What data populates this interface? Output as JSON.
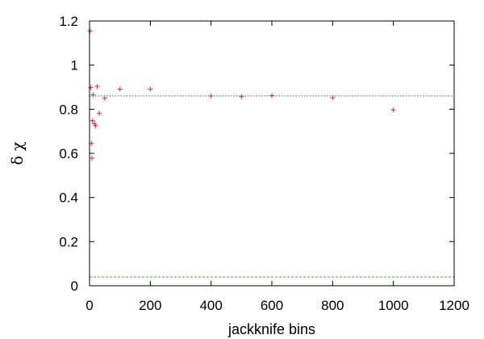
{
  "chart_data": {
    "type": "scatter",
    "title": "",
    "xlabel": "jackknife bins",
    "ylabel": "δ χ",
    "xlim": [
      0,
      1200
    ],
    "ylim": [
      0,
      1.2
    ],
    "x_ticks": [
      0,
      200,
      400,
      600,
      800,
      1000,
      1200
    ],
    "y_ticks": [
      0,
      0.2,
      0.4,
      0.6,
      0.8,
      1,
      1.2
    ],
    "x_tick_labels": [
      "0",
      "200",
      "400",
      "600",
      "800",
      "1000",
      "1200"
    ],
    "y_tick_labels": [
      "0",
      "0.2",
      "0.4",
      "0.6",
      "0.8",
      "1",
      "1.2"
    ],
    "grid": false,
    "legend": "none",
    "points": [
      {
        "x": 2,
        "y": 1.155
      },
      {
        "x": 4,
        "y": 0.898
      },
      {
        "x": 6,
        "y": 0.645
      },
      {
        "x": 8,
        "y": 0.578
      },
      {
        "x": 10,
        "y": 0.748
      },
      {
        "x": 12,
        "y": 0.865
      },
      {
        "x": 16,
        "y": 0.735
      },
      {
        "x": 20,
        "y": 0.725
      },
      {
        "x": 25,
        "y": 0.903
      },
      {
        "x": 32,
        "y": 0.782
      },
      {
        "x": 50,
        "y": 0.85
      },
      {
        "x": 100,
        "y": 0.891
      },
      {
        "x": 200,
        "y": 0.891
      },
      {
        "x": 400,
        "y": 0.86
      },
      {
        "x": 500,
        "y": 0.857
      },
      {
        "x": 600,
        "y": 0.862
      },
      {
        "x": 800,
        "y": 0.852
      },
      {
        "x": 1000,
        "y": 0.797
      }
    ],
    "reference_lines": [
      {
        "y": 0.86,
        "color": "#4a4ad8",
        "style": "dotted"
      },
      {
        "y": 0.04,
        "color": "#2fbf2f",
        "style": "dashed"
      }
    ],
    "marker": {
      "symbol": "+",
      "color": "#e8262a"
    }
  }
}
